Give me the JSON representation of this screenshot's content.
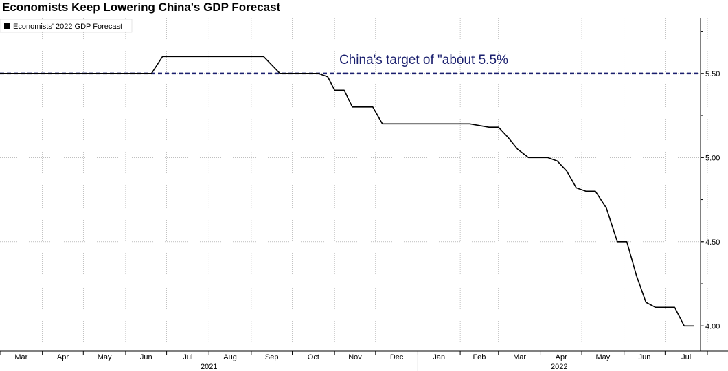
{
  "chart_data": {
    "type": "line",
    "title": "Economists Keep Lowering China's GDP Forecast",
    "legend": "Economists' 2022 GDP Forecast",
    "legend_position": "top-left",
    "ylim": [
      3.85,
      5.83
    ],
    "y_ticks": [
      "4.00",
      "4.50",
      "5.00",
      "5.50"
    ],
    "x_months": [
      "Mar",
      "Apr",
      "May",
      "Jun",
      "Jul",
      "Aug",
      "Sep",
      "Oct",
      "Nov",
      "Dec",
      "Jan",
      "Feb",
      "Mar",
      "Apr",
      "May",
      "Jun",
      "Jul"
    ],
    "x_years": [
      "2021",
      "2022"
    ],
    "grid": true,
    "target": {
      "value": 5.5,
      "label": "China's target of \"about 5.5%"
    },
    "series": [
      {
        "name": "Economists' 2022 GDP Forecast",
        "color": "#000000",
        "points": [
          [
            "2021-03-01",
            5.5
          ],
          [
            "2021-06-20",
            5.5
          ],
          [
            "2021-06-28",
            5.6
          ],
          [
            "2021-09-10",
            5.6
          ],
          [
            "2021-09-22",
            5.5
          ],
          [
            "2021-10-20",
            5.5
          ],
          [
            "2021-10-27",
            5.48
          ],
          [
            "2021-11-01",
            5.4
          ],
          [
            "2021-11-08",
            5.4
          ],
          [
            "2021-11-14",
            5.3
          ],
          [
            "2021-11-29",
            5.3
          ],
          [
            "2021-12-06",
            5.2
          ],
          [
            "2022-02-08",
            5.2
          ],
          [
            "2022-02-22",
            5.18
          ],
          [
            "2022-03-01",
            5.18
          ],
          [
            "2022-03-08",
            5.12
          ],
          [
            "2022-03-15",
            5.05
          ],
          [
            "2022-03-23",
            5.0
          ],
          [
            "2022-04-06",
            5.0
          ],
          [
            "2022-04-13",
            4.98
          ],
          [
            "2022-04-20",
            4.92
          ],
          [
            "2022-04-27",
            4.82
          ],
          [
            "2022-05-04",
            4.8
          ],
          [
            "2022-05-11",
            4.8
          ],
          [
            "2022-05-19",
            4.7
          ],
          [
            "2022-05-27",
            4.5
          ],
          [
            "2022-06-03",
            4.5
          ],
          [
            "2022-06-10",
            4.3
          ],
          [
            "2022-06-17",
            4.14
          ],
          [
            "2022-06-24",
            4.11
          ],
          [
            "2022-07-08",
            4.11
          ],
          [
            "2022-07-15",
            4.0
          ],
          [
            "2022-07-22",
            4.0
          ]
        ]
      }
    ]
  }
}
